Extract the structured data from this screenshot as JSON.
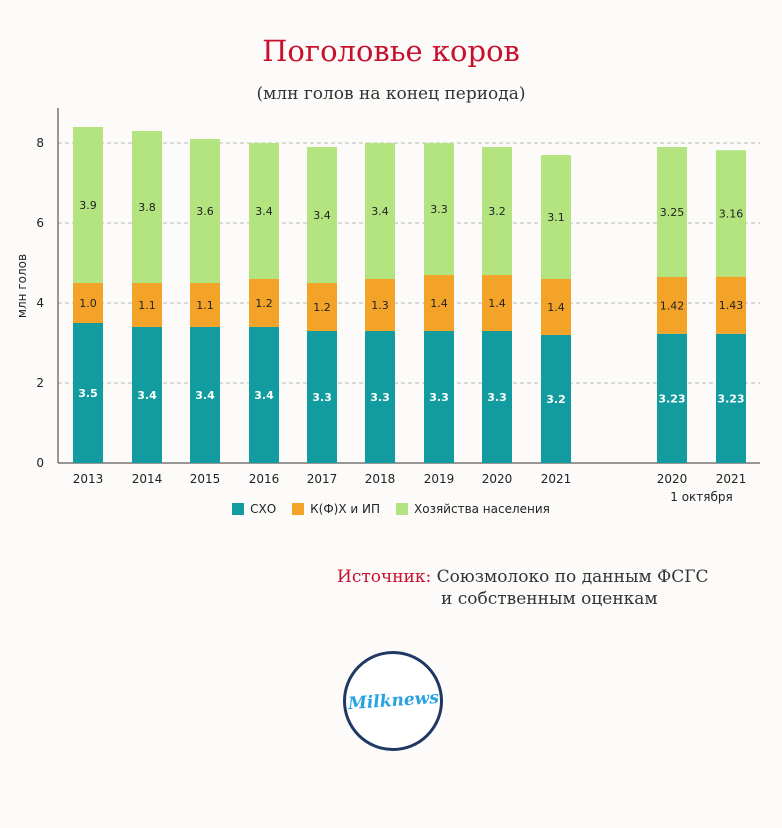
{
  "header": {
    "title": "Поголовье коров",
    "subtitle": "(млн голов на конец периода)"
  },
  "legend": {
    "items": [
      {
        "label": "СХО",
        "color": "#139c9f"
      },
      {
        "label": "К(Ф)Х и ИП",
        "color": "#f3a428"
      },
      {
        "label": "Хозяйства населения",
        "color": "#b4e47f"
      }
    ]
  },
  "source": {
    "label": "Источник:",
    "line1": "Союзмолоко по данным ФСГС",
    "line2": "и собственным оценкам"
  },
  "logo": {
    "text": "Milknews"
  },
  "chart_data": {
    "type": "bar",
    "stacked": true,
    "ylabel": "млн голов",
    "ylim": [
      0,
      9
    ],
    "yticks": [
      0,
      2,
      4,
      6,
      8
    ],
    "grid": true,
    "legend_position": "bottom",
    "categories": [
      "2013",
      "2014",
      "2015",
      "2016",
      "2017",
      "2018",
      "2019",
      "2020",
      "2021",
      "2020",
      "2021"
    ],
    "category_sublabel": {
      "text": "1 октября",
      "under_indices": [
        9,
        10
      ]
    },
    "series": [
      {
        "name": "СХО",
        "color": "#139c9f",
        "label_color": "#ffffff",
        "values": [
          3.5,
          3.4,
          3.4,
          3.4,
          3.3,
          3.3,
          3.3,
          3.3,
          3.2,
          3.23,
          3.23
        ],
        "labels": [
          "3.5",
          "3.4",
          "3.4",
          "3.4",
          "3.3",
          "3.3",
          "3.3",
          "3.3",
          "3.2",
          "3.23",
          "3.23"
        ]
      },
      {
        "name": "К(Ф)Х и ИП",
        "color": "#f3a428",
        "label_color": "#222222",
        "values": [
          1.0,
          1.1,
          1.1,
          1.2,
          1.2,
          1.3,
          1.4,
          1.4,
          1.4,
          1.42,
          1.43
        ],
        "labels": [
          "1.0",
          "1.1",
          "1.1",
          "1.2",
          "1.2",
          "1.3",
          "1.4",
          "1.4",
          "1.4",
          "1.42",
          "1.43"
        ]
      },
      {
        "name": "Хозяйства населения",
        "color": "#b4e47f",
        "label_color": "#222222",
        "values": [
          3.9,
          3.8,
          3.6,
          3.4,
          3.4,
          3.4,
          3.3,
          3.2,
          3.1,
          3.25,
          3.16
        ],
        "labels": [
          "3.9",
          "3.8",
          "3.6",
          "3.4",
          "3.4",
          "3.4",
          "3.3",
          "3.2",
          "3.1",
          "3.25",
          "3.16"
        ]
      }
    ]
  }
}
